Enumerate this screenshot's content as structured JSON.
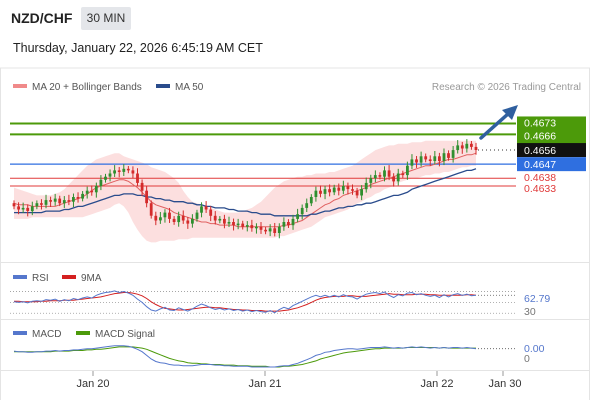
{
  "header": {
    "pair": "NZD/CHF",
    "timeframe": "30 MIN",
    "datetime": "Thursday, January 22, 2026 6:45:19 AM CET"
  },
  "legend": {
    "ma20": "MA 20 + Bollinger Bands",
    "ma50": "MA 50",
    "credit": "Research © 2026 Trading Central"
  },
  "rsi_panel": {
    "rsi_label": "RSI",
    "ma_label": "9MA",
    "value_label": "62.79",
    "level_30": "30"
  },
  "macd_panel": {
    "macd_label": "MACD",
    "signal_label": "MACD Signal",
    "value_label": "0.00",
    "zero_label": "0"
  },
  "x_axis": {
    "labels": [
      "Jan 20",
      "Jan 21",
      "Jan 22",
      "Jan 30"
    ]
  },
  "colors": {
    "bull": "#2f8f2f",
    "bear": "#d42b2b",
    "bands_fill": "#fbd9d9",
    "ma20": "#e06060",
    "ma50": "#2a4c8c",
    "level_green": "#4c9a0a",
    "level_blue": "#2f6fe0",
    "level_red": "#e03a3a",
    "rsi": "#5577cc",
    "rsi_ma": "#d42020",
    "macd": "#5577cc",
    "macd_signal": "#4c9a0a"
  },
  "chart_data": {
    "type": "candlestick",
    "ylim": [
      0.4587,
      0.4688
    ],
    "levels": [
      {
        "value": 0.4673,
        "label": "0.4673",
        "kind": "green"
      },
      {
        "value": 0.4666,
        "label": "0.4666",
        "kind": "green"
      },
      {
        "value": 0.4656,
        "label": "0.4656",
        "kind": "current"
      },
      {
        "value": 0.4647,
        "label": "0.4647",
        "kind": "blue"
      },
      {
        "value": 0.4638,
        "label": "0.4638",
        "kind": "red"
      },
      {
        "value": 0.4633,
        "label": "0.4633",
        "kind": "red"
      }
    ],
    "close": [
      0.462,
      0.4618,
      0.4619,
      0.4617,
      0.462,
      0.4622,
      0.4621,
      0.4624,
      0.4623,
      0.4625,
      0.4622,
      0.4624,
      0.4623,
      0.4626,
      0.4625,
      0.4628,
      0.463,
      0.4629,
      0.4633,
      0.4637,
      0.4639,
      0.4641,
      0.4643,
      0.4642,
      0.4644,
      0.4643,
      0.4641,
      0.4635,
      0.463,
      0.4622,
      0.4614,
      0.4611,
      0.4613,
      0.4616,
      0.4612,
      0.461,
      0.4614,
      0.4611,
      0.4609,
      0.4612,
      0.4616,
      0.462,
      0.4618,
      0.4614,
      0.4611,
      0.4612,
      0.4609,
      0.461,
      0.4608,
      0.4609,
      0.4607,
      0.4608,
      0.4606,
      0.4607,
      0.4605,
      0.4604,
      0.4606,
      0.4603,
      0.4607,
      0.461,
      0.4608,
      0.4612,
      0.4615,
      0.4619,
      0.4622,
      0.4626,
      0.463,
      0.4628,
      0.4631,
      0.4629,
      0.4632,
      0.463,
      0.4633,
      0.4631,
      0.463,
      0.4627,
      0.4631,
      0.4635,
      0.4638,
      0.464,
      0.4639,
      0.4643,
      0.4639,
      0.4636,
      0.4641,
      0.464,
      0.4646,
      0.465,
      0.4648,
      0.4652,
      0.465,
      0.4649,
      0.4652,
      0.4649,
      0.4654,
      0.4651,
      0.4656,
      0.4659,
      0.4657,
      0.466,
      0.4658,
      0.4656
    ],
    "bollinger_upper": [
      0.4632,
      0.4631,
      0.463,
      0.4629,
      0.4628,
      0.4627,
      0.4627,
      0.4627,
      0.4627,
      0.4628,
      0.4629,
      0.4631,
      0.4634,
      0.4637,
      0.464,
      0.4643,
      0.4646,
      0.4648,
      0.465,
      0.4651,
      0.4652,
      0.4653,
      0.4654,
      0.4654,
      0.4652,
      0.4651,
      0.465,
      0.4649,
      0.4648,
      0.4647,
      0.4645,
      0.4644,
      0.4643,
      0.4642,
      0.464,
      0.4638,
      0.4635,
      0.463,
      0.4626,
      0.4623,
      0.4622,
      0.4621,
      0.462,
      0.4619,
      0.4618,
      0.4617,
      0.4616,
      0.4616,
      0.4616,
      0.4616,
      0.4617,
      0.4618,
      0.4619,
      0.4621,
      0.4623,
      0.4626,
      0.4629,
      0.4632,
      0.4634,
      0.4636,
      0.4637,
      0.4638,
      0.4639,
      0.4639,
      0.464,
      0.464,
      0.4641,
      0.4641,
      0.4641,
      0.4642,
      0.4642,
      0.4643,
      0.4644,
      0.4645,
      0.4646,
      0.4648,
      0.465,
      0.4652,
      0.4654,
      0.4656,
      0.4657,
      0.4658,
      0.4659,
      0.4659,
      0.466,
      0.466,
      0.466,
      0.4661,
      0.4661,
      0.4661,
      0.4662,
      0.4662,
      0.4662,
      0.4662,
      0.4662,
      0.4662,
      0.4662,
      0.4662,
      0.4662,
      0.4662,
      0.4662,
      0.4662
    ],
    "bollinger_lower": [
      0.4612,
      0.4612,
      0.4612,
      0.4612,
      0.4613,
      0.4613,
      0.4613,
      0.4613,
      0.4613,
      0.4613,
      0.4613,
      0.4613,
      0.4613,
      0.4613,
      0.4613,
      0.4613,
      0.4614,
      0.4615,
      0.4616,
      0.4617,
      0.4618,
      0.4619,
      0.4621,
      0.4622,
      0.462,
      0.4616,
      0.461,
      0.4605,
      0.4601,
      0.4598,
      0.4597,
      0.4597,
      0.4598,
      0.4598,
      0.4598,
      0.4598,
      0.4599,
      0.4599,
      0.4599,
      0.46,
      0.46,
      0.46,
      0.46,
      0.46,
      0.46,
      0.46,
      0.46,
      0.46,
      0.46,
      0.46,
      0.46,
      0.46,
      0.46,
      0.46,
      0.46,
      0.46,
      0.46,
      0.46,
      0.4601,
      0.4601,
      0.4602,
      0.4603,
      0.4604,
      0.4605,
      0.4606,
      0.4607,
      0.4609,
      0.4611,
      0.4613,
      0.4614,
      0.4615,
      0.4616,
      0.4617,
      0.4618,
      0.462,
      0.4622,
      0.4623,
      0.4625,
      0.4626,
      0.4628,
      0.4629,
      0.4631,
      0.4632,
      0.4633,
      0.4635,
      0.4636,
      0.4637,
      0.4638,
      0.4638,
      0.4639,
      0.464,
      0.464,
      0.4641,
      0.4641,
      0.4642,
      0.4642,
      0.4643,
      0.4644,
      0.4645,
      0.4645,
      0.4646,
      0.4646
    ],
    "ma20": [
      0.4622,
      0.4621,
      0.4621,
      0.4621,
      0.462,
      0.462,
      0.462,
      0.462,
      0.462,
      0.462,
      0.4621,
      0.4622,
      0.4623,
      0.4624,
      0.4625,
      0.4626,
      0.4628,
      0.463,
      0.4632,
      0.4633,
      0.4634,
      0.4635,
      0.4636,
      0.4637,
      0.4637,
      0.4636,
      0.4634,
      0.4632,
      0.4629,
      0.4626,
      0.4623,
      0.4621,
      0.462,
      0.4619,
      0.4618,
      0.4616,
      0.4615,
      0.4614,
      0.4613,
      0.4612,
      0.4611,
      0.461,
      0.461,
      0.4609,
      0.4609,
      0.4608,
      0.4608,
      0.4608,
      0.4608,
      0.4607,
      0.4607,
      0.4607,
      0.4607,
      0.4607,
      0.4607,
      0.4607,
      0.4607,
      0.4607,
      0.4607,
      0.4608,
      0.4608,
      0.4609,
      0.461,
      0.4611,
      0.4613,
      0.4615,
      0.4617,
      0.4619,
      0.4621,
      0.4622,
      0.4624,
      0.4625,
      0.4627,
      0.4628,
      0.4629,
      0.463,
      0.4631,
      0.4632,
      0.4634,
      0.4635,
      0.4636,
      0.4637,
      0.4638,
      0.4639,
      0.464,
      0.4641,
      0.4642,
      0.4643,
      0.4644,
      0.4645,
      0.4646,
      0.4646,
      0.4647,
      0.4648,
      0.4649,
      0.465,
      0.465,
      0.4651,
      0.4652,
      0.4653,
      0.4653,
      0.4654
    ],
    "ma50": [
      0.4616,
      0.4616,
      0.4616,
      0.4616,
      0.4616,
      0.4616,
      0.4616,
      0.4617,
      0.4617,
      0.4617,
      0.4617,
      0.4618,
      0.4618,
      0.4619,
      0.462,
      0.462,
      0.4621,
      0.4622,
      0.4623,
      0.4624,
      0.4625,
      0.4626,
      0.4627,
      0.4627,
      0.4628,
      0.4628,
      0.4628,
      0.4627,
      0.4627,
      0.4626,
      0.4626,
      0.4625,
      0.4625,
      0.4624,
      0.4624,
      0.4623,
      0.4623,
      0.4623,
      0.4622,
      0.4622,
      0.4621,
      0.4621,
      0.462,
      0.462,
      0.4619,
      0.4619,
      0.4619,
      0.4618,
      0.4618,
      0.4617,
      0.4617,
      0.4617,
      0.4616,
      0.4616,
      0.4615,
      0.4615,
      0.4615,
      0.4614,
      0.4614,
      0.4614,
      0.4614,
      0.4614,
      0.4614,
      0.4614,
      0.4614,
      0.4615,
      0.4615,
      0.4616,
      0.4617,
      0.4617,
      0.4618,
      0.4619,
      0.4619,
      0.462,
      0.462,
      0.4621,
      0.4621,
      0.4622,
      0.4622,
      0.4623,
      0.4624,
      0.4625,
      0.4626,
      0.4627,
      0.4627,
      0.4628,
      0.4629,
      0.4631,
      0.4632,
      0.4633,
      0.4634,
      0.4635,
      0.4636,
      0.4637,
      0.4638,
      0.4639,
      0.464,
      0.4641,
      0.4642,
      0.4643,
      0.4643,
      0.4644
    ],
    "rsi": [
      51,
      50,
      51,
      49,
      52,
      53,
      52,
      55,
      54,
      56,
      52,
      55,
      53,
      57,
      55,
      58,
      60,
      58,
      63,
      66,
      68,
      69,
      71,
      68,
      70,
      67,
      63,
      56,
      50,
      42,
      36,
      34,
      38,
      41,
      36,
      35,
      40,
      37,
      34,
      38,
      43,
      47,
      44,
      40,
      37,
      39,
      36,
      38,
      35,
      37,
      34,
      36,
      33,
      35,
      33,
      32,
      35,
      31,
      37,
      41,
      38,
      44,
      48,
      52,
      56,
      60,
      63,
      60,
      63,
      60,
      63,
      60,
      64,
      61,
      60,
      56,
      61,
      65,
      67,
      68,
      66,
      69,
      63,
      59,
      64,
      62,
      67,
      68,
      64,
      66,
      63,
      61,
      63,
      59,
      64,
      60,
      64,
      66,
      63,
      65,
      62,
      63
    ],
    "rsi_ma": [
      52,
      52,
      51,
      51,
      51,
      51,
      52,
      52,
      53,
      53,
      53,
      54,
      54,
      54,
      55,
      56,
      57,
      58,
      59,
      60,
      62,
      64,
      66,
      67,
      68,
      68,
      67,
      65,
      62,
      57,
      51,
      46,
      42,
      39,
      38,
      37,
      36,
      36,
      37,
      38,
      39,
      40,
      41,
      41,
      40,
      40,
      39,
      38,
      37,
      37,
      36,
      36,
      35,
      35,
      35,
      34,
      34,
      34,
      34,
      35,
      36,
      38,
      40,
      43,
      46,
      50,
      54,
      57,
      59,
      60,
      61,
      61,
      61,
      62,
      62,
      61,
      61,
      61,
      62,
      63,
      64,
      65,
      66,
      65,
      65,
      64,
      64,
      64,
      65,
      65,
      65,
      64,
      64,
      63,
      63,
      63,
      63,
      63,
      63,
      64,
      64,
      63
    ],
    "rsi_ylim": [
      25,
      80
    ],
    "macd": [
      5e-05,
      4e-05,
      4e-05,
      3e-05,
      3e-05,
      4e-05,
      4e-05,
      5e-05,
      5e-05,
      6e-05,
      5e-05,
      6e-05,
      6e-05,
      7e-05,
      7e-05,
      8e-05,
      9e-05,
      9e-05,
      0.0001,
      0.00011,
      0.00012,
      0.00013,
      0.00014,
      0.00014,
      0.00014,
      0.00013,
      0.00011,
      8e-05,
      4e-05,
      -2e-05,
      -8e-05,
      -0.00012,
      -0.00014,
      -0.00015,
      -0.00017,
      -0.00018,
      -0.00018,
      -0.00019,
      -0.00019,
      -0.00019,
      -0.00018,
      -0.00017,
      -0.00017,
      -0.00017,
      -0.00018,
      -0.00018,
      -0.00019,
      -0.00019,
      -0.0002,
      -0.0002,
      -0.0002,
      -0.0002,
      -0.00021,
      -0.00021,
      -0.00021,
      -0.00021,
      -0.00021,
      -0.00021,
      -0.0002,
      -0.00019,
      -0.00019,
      -0.00017,
      -0.00015,
      -0.00012,
      -9e-05,
      -6e-05,
      -2e-05,
      0.0,
      3e-05,
      4e-05,
      6e-05,
      7e-05,
      8e-05,
      9e-05,
      9e-05,
      8e-05,
      9e-05,
      0.0001,
      0.00011,
      0.00011,
      0.00011,
      0.00012,
      0.00011,
      0.0001,
      0.00011,
      0.0001,
      0.00011,
      0.00012,
      0.00011,
      0.00012,
      0.00011,
      0.0001,
      0.00011,
      0.0001,
      0.00011,
      0.0001,
      0.00011,
      0.00011,
      0.0001,
      0.00011,
      0.0001,
      9e-05
    ],
    "macd_signal": [
      4e-05,
      4e-05,
      4e-05,
      4e-05,
      4e-05,
      4e-05,
      4e-05,
      4e-05,
      4e-05,
      5e-05,
      5e-05,
      5e-05,
      5e-05,
      6e-05,
      6e-05,
      6e-05,
      7e-05,
      7e-05,
      8e-05,
      8e-05,
      9e-05,
      0.0001,
      0.00011,
      0.00012,
      0.00012,
      0.00012,
      0.00012,
      0.00011,
      0.0001,
      8e-05,
      5e-05,
      2e-05,
      -1e-05,
      -4e-05,
      -7e-05,
      -9e-05,
      -0.00011,
      -0.00012,
      -0.00014,
      -0.00015,
      -0.00015,
      -0.00016,
      -0.00016,
      -0.00017,
      -0.00017,
      -0.00017,
      -0.00018,
      -0.00018,
      -0.00018,
      -0.00019,
      -0.00019,
      -0.00019,
      -0.0002,
      -0.0002,
      -0.0002,
      -0.0002,
      -0.00021,
      -0.00021,
      -0.00021,
      -0.0002,
      -0.0002,
      -0.00019,
      -0.00018,
      -0.00017,
      -0.00015,
      -0.00013,
      -0.00011,
      -8e-05,
      -6e-05,
      -4e-05,
      -2e-05,
      0.0,
      2e-05,
      3e-05,
      4e-05,
      5e-05,
      6e-05,
      7e-05,
      8e-05,
      9e-05,
      9e-05,
      0.0001,
      0.0001,
      0.0001,
      0.0001,
      0.0001,
      0.00011,
      0.00011,
      0.00011,
      0.00011,
      0.00011,
      0.00011,
      0.00011,
      0.0001,
      0.00011,
      0.0001,
      0.0001,
      0.0001,
      0.0001,
      0.0001,
      0.0001,
      0.0001
    ],
    "macd_ylim": [
      -0.00026,
      0.0002
    ]
  }
}
